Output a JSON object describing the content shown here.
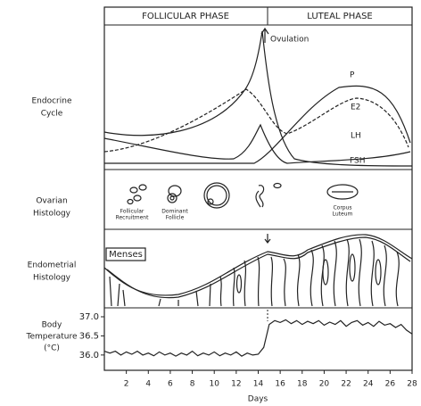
{
  "header": {
    "follicular": "FOLLICULAR PHASE",
    "luteal": "LUTEAL PHASE"
  },
  "rows": {
    "endocrine": [
      "Endocrine",
      "Cycle"
    ],
    "ovarian": [
      "Ovarian",
      "Histology"
    ],
    "endometrial": [
      "Endometrial",
      "Histology"
    ],
    "temperature": [
      "Body",
      "Temperature",
      "(°C)"
    ]
  },
  "endocrine": {
    "ovulation": "Ovulation",
    "p": "P",
    "e2": "E2",
    "lh": "LH",
    "fsh": "FSH"
  },
  "ovarian": {
    "recruitment": [
      "Follicular",
      "Recruitment"
    ],
    "dominant": [
      "Dominant",
      "Follicle"
    ],
    "luteum": [
      "Corpus",
      "Luteum"
    ]
  },
  "endometrium": {
    "menses": "Menses"
  },
  "temperature": {
    "xlim": [
      0,
      28
    ],
    "xticks": [
      2,
      4,
      6,
      8,
      10,
      12,
      14,
      16,
      18,
      20,
      22,
      24,
      26,
      28
    ],
    "ylim": [
      35.6,
      37.1
    ],
    "yticks": [
      {
        "value": 36,
        "label": "36.0"
      },
      36.5,
      {
        "value": 37,
        "label": "37.0"
      }
    ],
    "xlabel": "Days",
    "x": [
      0,
      0.5,
      1,
      1.5,
      2,
      2.5,
      3,
      3.5,
      4,
      4.5,
      5,
      5.5,
      6,
      6.5,
      7,
      7.5,
      8,
      8.5,
      9,
      9.5,
      10,
      10.5,
      11,
      11.5,
      12,
      12.5,
      13,
      13.5,
      14,
      14.5,
      15,
      15.5,
      16,
      16.5,
      17,
      17.5,
      18,
      18.5,
      19,
      19.5,
      20,
      20.5,
      21,
      21.5,
      22,
      22.5,
      23,
      23.5,
      24,
      24.5,
      25,
      25.5,
      26,
      26.5,
      27,
      27.5,
      28
    ],
    "values": [
      36.1,
      36.05,
      36.1,
      36.0,
      36.08,
      36.02,
      36.1,
      36.0,
      36.05,
      35.98,
      36.08,
      36.0,
      36.05,
      35.97,
      36.05,
      36.0,
      36.1,
      35.98,
      36.05,
      36.0,
      36.08,
      35.98,
      36.05,
      36.0,
      36.08,
      35.97,
      36.05,
      36.0,
      36.02,
      36.2,
      36.8,
      36.9,
      36.85,
      36.92,
      36.82,
      36.9,
      36.8,
      36.88,
      36.82,
      36.9,
      36.78,
      36.86,
      36.8,
      36.9,
      36.75,
      36.85,
      36.9,
      36.78,
      36.85,
      36.75,
      36.88,
      36.78,
      36.82,
      36.72,
      36.8,
      36.65,
      36.55
    ]
  }
}
